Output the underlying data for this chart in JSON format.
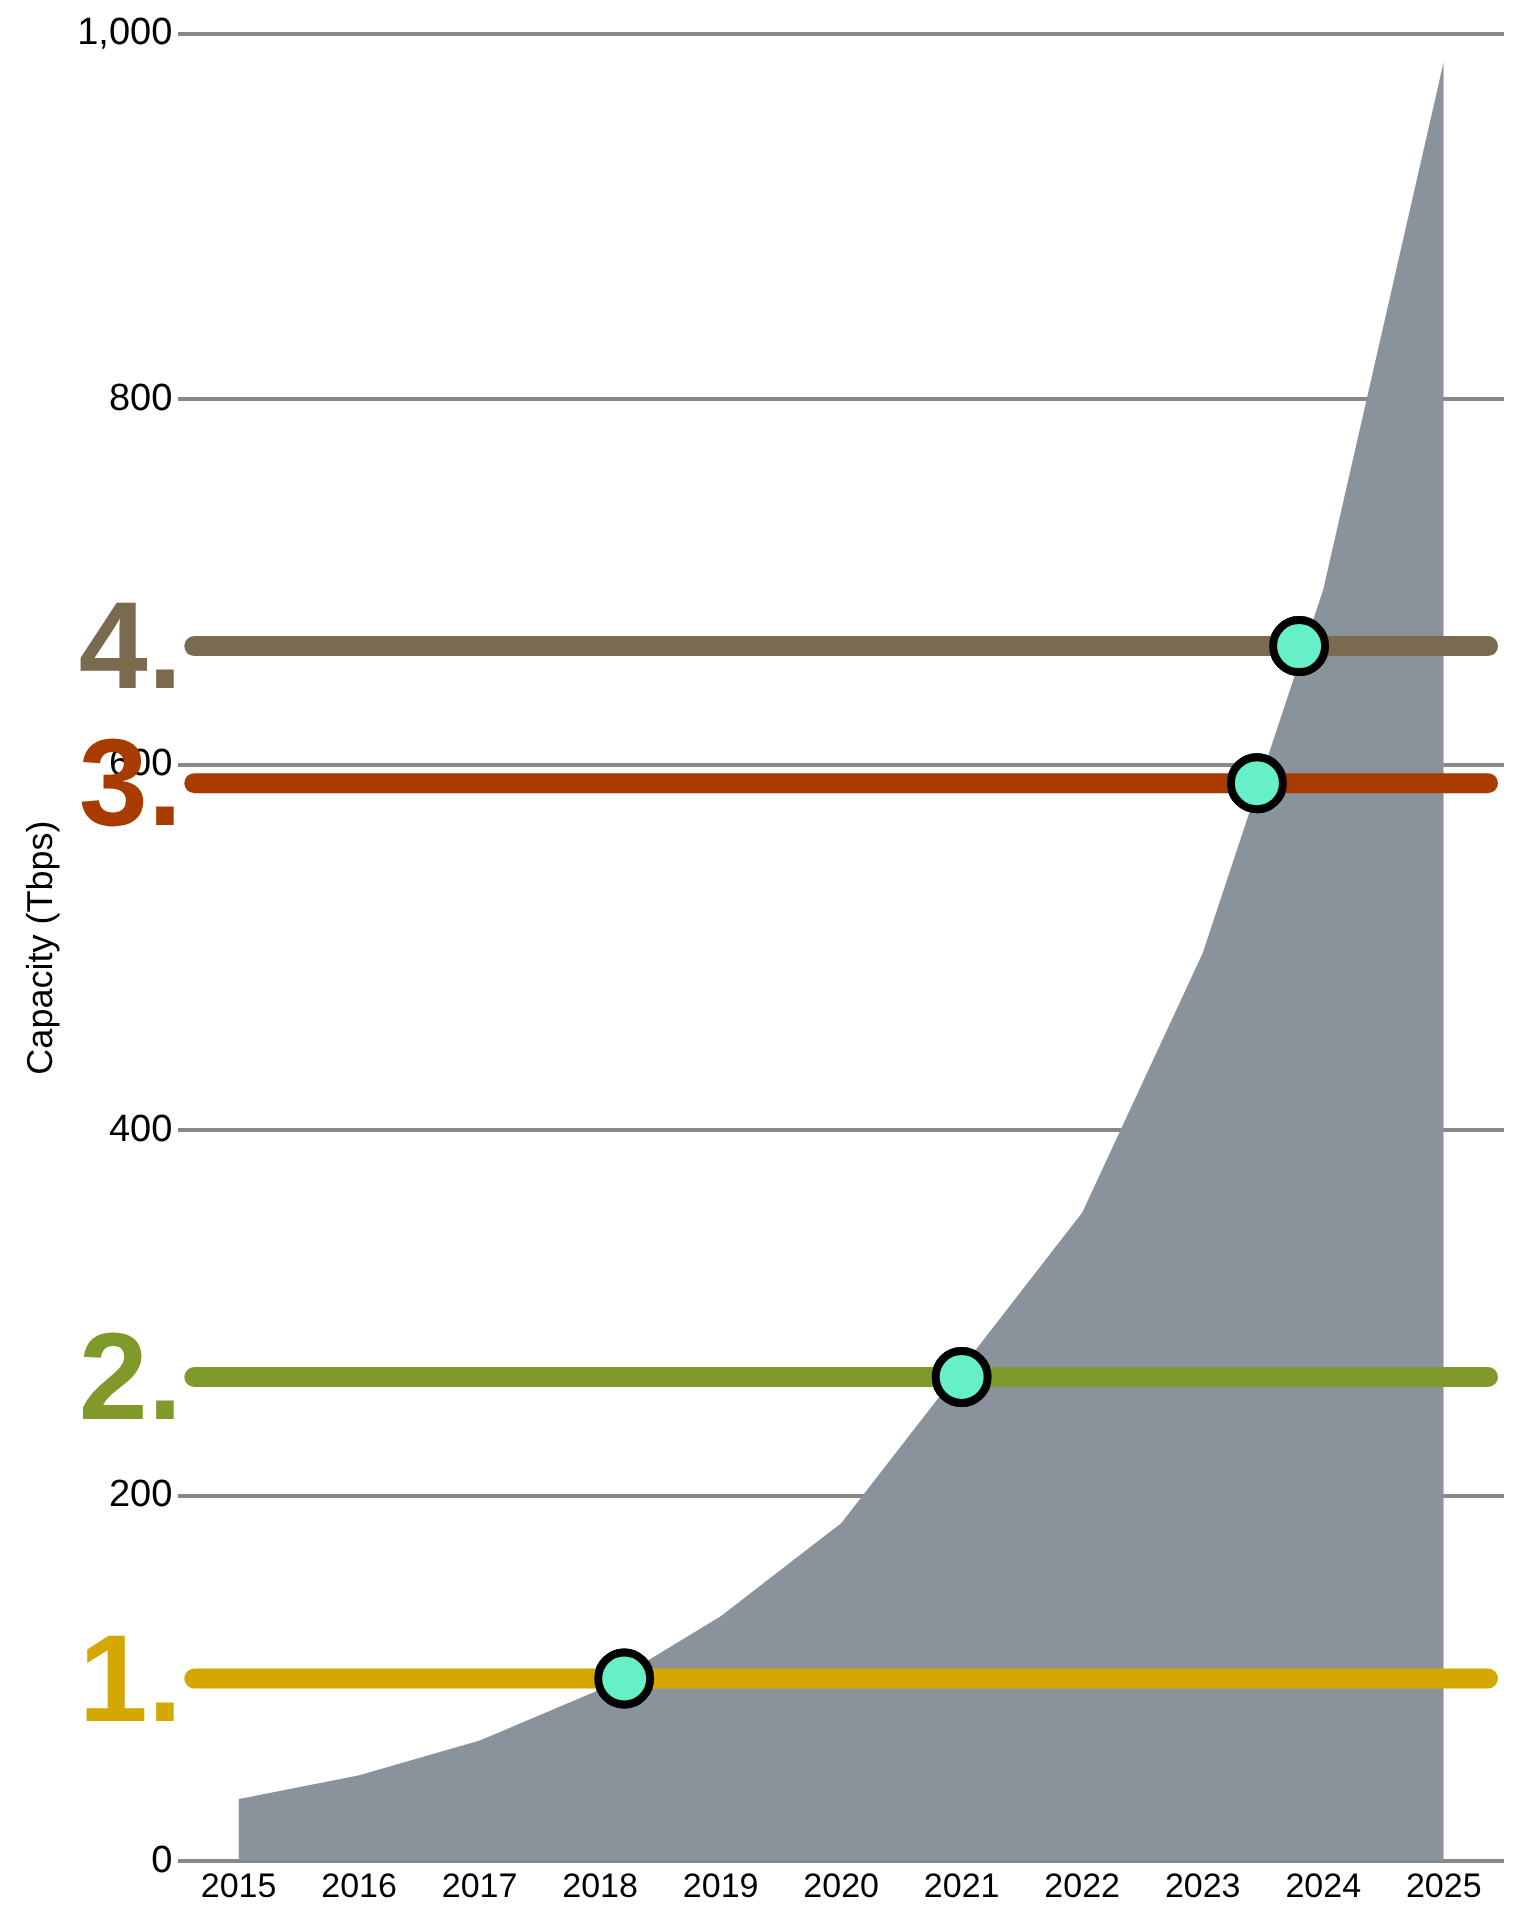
{
  "chart_data": {
    "type": "area",
    "ylabel": "Capacity (Tbps)",
    "xlim": [
      2014.5,
      2025.5
    ],
    "xticks": [
      2015,
      2016,
      2017,
      2018,
      2019,
      2020,
      2021,
      2022,
      2023,
      2024,
      2025
    ],
    "ylim": [
      0,
      1000
    ],
    "yticks": [
      0,
      200,
      400,
      600,
      800,
      {
        "value": 1000,
        "label": "1,000"
      }
    ],
    "grid": "y",
    "legend": false,
    "series": [
      {
        "color": "#8a939b",
        "x": [
          2015,
          2016,
          2017,
          2018,
          2019,
          2020,
          2021,
          2022,
          2023,
          2024,
          2025
        ],
        "values": [
          34,
          47,
          66,
          94,
          134,
          185,
          null,
          355,
          497,
          696,
          985
        ]
      },
      {
        "type": "scatter",
        "color": "#66f0c8",
        "x": [
          2018.2,
          2021.0,
          2023.45,
          2023.8
        ],
        "values": [
          100,
          265,
          590,
          665
        ],
        "marker": "circle"
      }
    ],
    "ref_lines": [
      {
        "axis": "y",
        "value": 100,
        "color": "#d4a800"
      },
      {
        "axis": "y",
        "value": 265,
        "color": "#7f9a2a"
      },
      {
        "axis": "y",
        "value": 590,
        "color": "#a83c00"
      },
      {
        "axis": "y",
        "value": 665,
        "color": "#7a6a50"
      }
    ],
    "annotations": [
      "1.",
      "2.",
      "3.",
      "4."
    ]
  }
}
